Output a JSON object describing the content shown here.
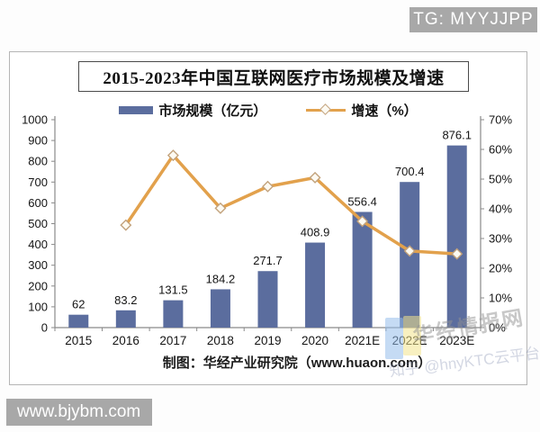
{
  "badges": {
    "tg": "TG: MYYJJPP",
    "site": "www.bjybm.com"
  },
  "watermarks": {
    "brand": "华经情报网",
    "faint": "知乎 @hnyKTC云平台"
  },
  "chart": {
    "title": "2015-2023年中国互联网医疗市场规模及增速",
    "caption": "制图：华经产业研究院（www.huaon.com）",
    "legend": {
      "bars": "市场规模（亿元）",
      "line": "增速（%）"
    }
  },
  "chart_data": {
    "type": "bar+line",
    "title": "2015-2023年中国互联网医疗市场规模及增速",
    "categories": [
      "2015",
      "2016",
      "2017",
      "2018",
      "2019",
      "2020",
      "2021E",
      "2022E",
      "2023E"
    ],
    "series": [
      {
        "name": "市场规模（亿元）",
        "type": "bar",
        "axis": "left",
        "values": [
          62,
          83.2,
          131.5,
          184.2,
          271.7,
          408.9,
          556.4,
          700.4,
          876.1
        ],
        "labels": [
          "62",
          "83.2",
          "131.5",
          "184.2",
          "271.7",
          "408.9",
          "556.4",
          "700.4",
          "876.1"
        ],
        "color": "#5b6d9e"
      },
      {
        "name": "增速（%）",
        "type": "line",
        "axis": "right",
        "values": [
          null,
          34.5,
          58,
          40.2,
          47.5,
          50.5,
          35.8,
          25.8,
          24.8
        ],
        "color": "#e2a14c",
        "marker": "diamond",
        "marker_fill": "#fdfaf2",
        "marker_stroke": "#c2a27c"
      }
    ],
    "left_axis": {
      "min": 0,
      "max": 1000,
      "step": 100,
      "ticks": [
        "0",
        "100",
        "200",
        "300",
        "400",
        "500",
        "600",
        "700",
        "800",
        "900",
        "1000"
      ]
    },
    "right_axis": {
      "min": 0,
      "max": 70,
      "step": 10,
      "ticks": [
        "0%",
        "10%",
        "20%",
        "30%",
        "40%",
        "50%",
        "60%",
        "70%"
      ],
      "format": "percent"
    },
    "grid": false,
    "legend_position": "top"
  }
}
